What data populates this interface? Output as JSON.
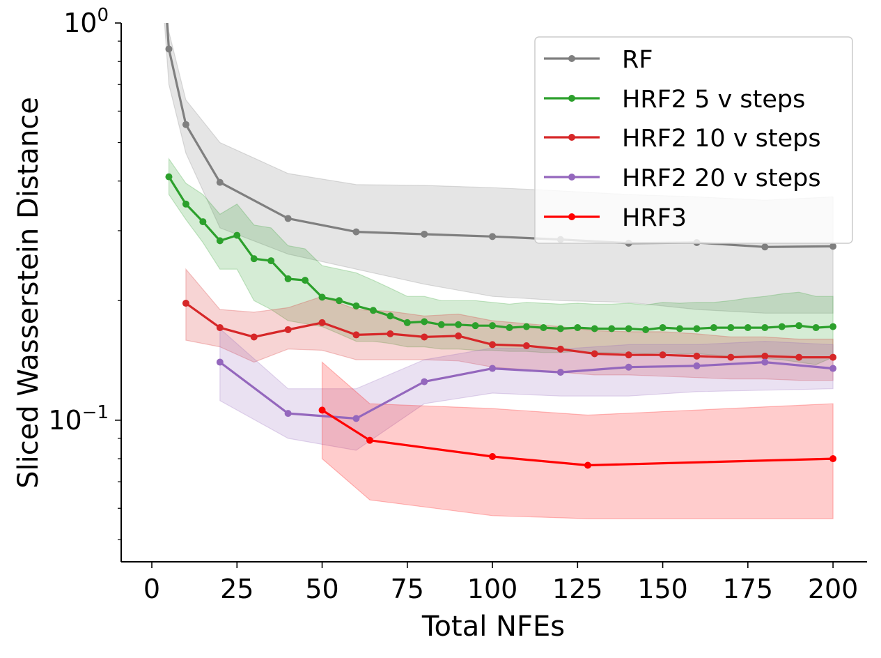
{
  "chart_data": {
    "type": "line",
    "xlabel": "Total NFEs",
    "ylabel": "Sliced Wasserstein Distance",
    "xlim": [
      -9,
      210
    ],
    "ylim": [
      0.044,
      1.0
    ],
    "yscale": "log",
    "xticks": [
      0,
      25,
      50,
      75,
      100,
      125,
      150,
      175,
      200
    ],
    "xtick_labels": [
      "0",
      "25",
      "50",
      "75",
      "100",
      "125",
      "150",
      "175",
      "200"
    ],
    "ytick_labels": [
      {
        "value": 1.0,
        "base": "10",
        "exp": "0"
      },
      {
        "value": 0.1,
        "base": "10",
        "exp": "−1"
      }
    ],
    "grid": false,
    "legend_position": "upper-right",
    "series": [
      {
        "name": "RF",
        "color": "#7f7f7f",
        "x": [
          2,
          5,
          10,
          20,
          40,
          60,
          80,
          100,
          120,
          140,
          160,
          180,
          200
        ],
        "y": [
          2.0,
          0.86,
          0.555,
          0.397,
          0.322,
          0.298,
          0.294,
          0.29,
          0.285,
          0.279,
          0.28,
          0.273,
          0.274
        ],
        "band_upper": [
          2.4,
          0.95,
          0.64,
          0.5,
          0.418,
          0.392,
          0.39,
          0.385,
          0.378,
          0.37,
          0.365,
          0.358,
          0.365
        ],
        "band_lower": [
          1.6,
          0.7,
          0.47,
          0.305,
          0.262,
          0.24,
          0.22,
          0.205,
          0.2,
          0.198,
          0.19,
          0.186,
          0.186
        ]
      },
      {
        "name": "HRF2 5 v steps",
        "color": "#2ca02c",
        "x": [
          5,
          10,
          15,
          20,
          25,
          30,
          35,
          40,
          45,
          50,
          55,
          60,
          65,
          70,
          75,
          80,
          85,
          90,
          95,
          100,
          105,
          110,
          115,
          120,
          125,
          130,
          135,
          140,
          145,
          150,
          155,
          160,
          165,
          170,
          175,
          180,
          185,
          190,
          195,
          200
        ],
        "y": [
          0.41,
          0.35,
          0.316,
          0.283,
          0.292,
          0.255,
          0.252,
          0.227,
          0.225,
          0.204,
          0.2,
          0.194,
          0.189,
          0.183,
          0.176,
          0.177,
          0.174,
          0.174,
          0.173,
          0.173,
          0.171,
          0.172,
          0.171,
          0.17,
          0.171,
          0.17,
          0.17,
          0.17,
          0.169,
          0.171,
          0.17,
          0.17,
          0.171,
          0.171,
          0.171,
          0.171,
          0.172,
          0.173,
          0.171,
          0.172
        ],
        "band_upper": [
          0.455,
          0.395,
          0.37,
          0.33,
          0.35,
          0.31,
          0.305,
          0.275,
          0.27,
          0.245,
          0.24,
          0.235,
          0.225,
          0.215,
          0.205,
          0.205,
          0.2,
          0.2,
          0.2,
          0.198,
          0.196,
          0.198,
          0.197,
          0.196,
          0.197,
          0.196,
          0.196,
          0.197,
          0.195,
          0.198,
          0.197,
          0.198,
          0.198,
          0.2,
          0.203,
          0.205,
          0.208,
          0.21,
          0.205,
          0.205
        ],
        "band_lower": [
          0.37,
          0.32,
          0.28,
          0.24,
          0.24,
          0.2,
          0.19,
          0.178,
          0.175,
          0.172,
          0.165,
          0.158,
          0.158,
          0.156,
          0.153,
          0.153,
          0.151,
          0.151,
          0.15,
          0.15,
          0.149,
          0.149,
          0.148,
          0.148,
          0.149,
          0.148,
          0.148,
          0.148,
          0.147,
          0.148,
          0.147,
          0.147,
          0.146,
          0.145,
          0.144,
          0.143,
          0.142,
          0.14,
          0.138,
          0.144
        ]
      },
      {
        "name": "HRF2 10 v steps",
        "color": "#d62728",
        "x": [
          10,
          20,
          30,
          40,
          50,
          60,
          70,
          80,
          90,
          100,
          110,
          120,
          130,
          140,
          150,
          160,
          170,
          180,
          190,
          200
        ],
        "y": [
          0.197,
          0.171,
          0.162,
          0.169,
          0.176,
          0.164,
          0.165,
          0.162,
          0.163,
          0.155,
          0.154,
          0.151,
          0.147,
          0.146,
          0.146,
          0.145,
          0.144,
          0.145,
          0.144,
          0.144
        ],
        "band_upper": [
          0.24,
          0.19,
          0.187,
          0.192,
          0.205,
          0.19,
          0.188,
          0.183,
          0.185,
          0.178,
          0.175,
          0.172,
          0.168,
          0.167,
          0.167,
          0.165,
          0.162,
          0.162,
          0.16,
          0.16
        ],
        "band_lower": [
          0.159,
          0.153,
          0.14,
          0.151,
          0.15,
          0.142,
          0.142,
          0.142,
          0.141,
          0.136,
          0.134,
          0.132,
          0.13,
          0.13,
          0.129,
          0.128,
          0.127,
          0.127,
          0.126,
          0.126
        ]
      },
      {
        "name": "HRF2 20 v steps",
        "color": "#9467bd",
        "x": [
          20,
          40,
          60,
          80,
          100,
          120,
          140,
          160,
          180,
          200
        ],
        "y": [
          0.14,
          0.104,
          0.101,
          0.125,
          0.135,
          0.132,
          0.136,
          0.137,
          0.14,
          0.135
        ],
        "band_upper": [
          0.17,
          0.12,
          0.12,
          0.142,
          0.152,
          0.151,
          0.155,
          0.155,
          0.158,
          0.155
        ],
        "band_lower": [
          0.112,
          0.09,
          0.084,
          0.11,
          0.117,
          0.115,
          0.115,
          0.118,
          0.119,
          0.12
        ]
      },
      {
        "name": "HRF3",
        "color": "#ff0000",
        "x": [
          50,
          64,
          100,
          128,
          200
        ],
        "y": [
          0.106,
          0.089,
          0.081,
          0.077,
          0.08
        ],
        "band_upper": [
          0.14,
          0.11,
          0.107,
          0.103,
          0.11
        ],
        "band_lower": [
          0.08,
          0.063,
          0.0575,
          0.0565,
          0.0565
        ]
      }
    ]
  }
}
